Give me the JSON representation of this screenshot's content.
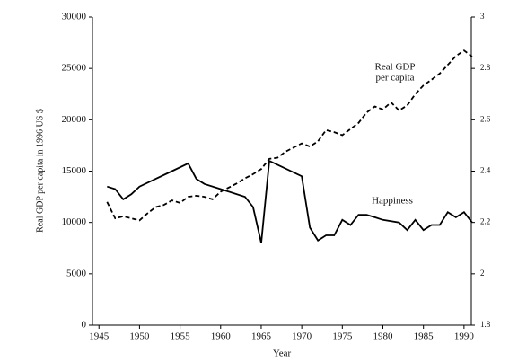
{
  "chart_data": {
    "type": "line",
    "xlabel": "Year",
    "ylabel": "Real GDP per capita in 1996 US $",
    "xlim": [
      1944.2,
      1990.9
    ],
    "xticks": [
      1945,
      1950,
      1955,
      1960,
      1965,
      1970,
      1975,
      1980,
      1985,
      1990
    ],
    "ylim": [
      0,
      30000
    ],
    "yticks": [
      0,
      5000,
      10000,
      15000,
      20000,
      25000,
      30000
    ],
    "y2lim": [
      1.8,
      3
    ],
    "y2ticks": [
      1.8,
      2,
      2.2,
      2.4,
      2.6,
      2.8,
      3
    ],
    "annotations": [
      {
        "lines": [
          "Real GDP",
          "per capita"
        ]
      },
      {
        "lines": [
          "Happiness"
        ]
      }
    ],
    "series": [
      {
        "name": "Real GDP per capita",
        "color": "#000000",
        "dashed": true,
        "x": [
          1946,
          1947,
          1948,
          1949,
          1950,
          1951,
          1952,
          1953,
          1954,
          1955,
          1956,
          1957,
          1958,
          1959,
          1960,
          1961,
          1962,
          1963,
          1964,
          1965,
          1966,
          1967,
          1968,
          1969,
          1970,
          1971,
          1972,
          1973,
          1974,
          1975,
          1976,
          1977,
          1978,
          1979,
          1980,
          1981,
          1982,
          1983,
          1984,
          1985,
          1986,
          1987,
          1988,
          1989,
          1990,
          1991
        ],
        "values": [
          12000,
          10400,
          10600,
          10400,
          10200,
          10900,
          11500,
          11700,
          12150,
          11900,
          12500,
          12600,
          12500,
          12250,
          13000,
          13400,
          13800,
          14300,
          14700,
          15200,
          16200,
          16300,
          16900,
          17300,
          17700,
          17400,
          17900,
          19000,
          18800,
          18500,
          19100,
          19700,
          20700,
          21300,
          21000,
          21700,
          20900,
          21400,
          22500,
          23350,
          23900,
          24500,
          25350,
          26200,
          26750,
          26150
        ]
      },
      {
        "name": "Happiness",
        "color": "#000000",
        "dashed": false,
        "axis": "y2",
        "x": [
          1946,
          1947,
          1948,
          1949,
          1950,
          1952,
          1954,
          1956,
          1957,
          1958,
          1960,
          1963,
          1964,
          1965,
          1966,
          1970,
          1971,
          1972,
          1973,
          1974,
          1975,
          1976,
          1977,
          1978,
          1979,
          1980,
          1982,
          1983,
          1984,
          1985,
          1986,
          1987,
          1988,
          1989,
          1990,
          1991
        ],
        "values": [
          2.34,
          2.33,
          2.29,
          2.31,
          2.34,
          2.37,
          2.4,
          2.43,
          2.37,
          2.35,
          2.33,
          2.3,
          2.26,
          2.12,
          2.44,
          2.38,
          2.18,
          2.13,
          2.15,
          2.15,
          2.21,
          2.19,
          2.23,
          2.23,
          2.22,
          2.21,
          2.2,
          2.17,
          2.21,
          2.17,
          2.19,
          2.19,
          2.24,
          2.22,
          2.24,
          2.2
        ]
      }
    ]
  }
}
